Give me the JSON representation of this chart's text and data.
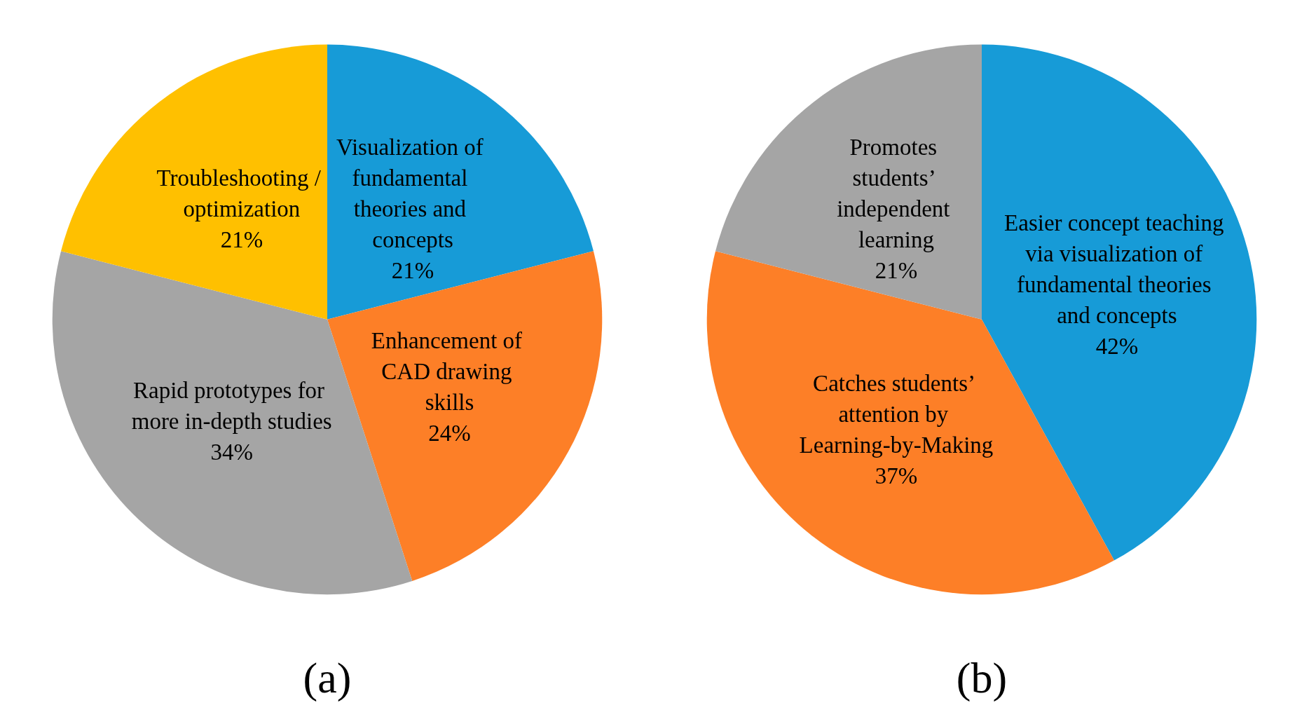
{
  "chart_data": [
    {
      "type": "pie",
      "title": "(a)",
      "categories": [
        "Visualization of fundamental theories and concepts",
        "Enhancement of CAD drawing skills",
        "Rapid prototypes for more in-depth studies",
        "Troubleshooting / optimization"
      ],
      "values": [
        21,
        24,
        34,
        21
      ],
      "value_labels": [
        "21%",
        "24%",
        "34%",
        "21%"
      ],
      "colors": [
        "#179bd7",
        "#fd7f27",
        "#a5a5a5",
        "#ffc000"
      ]
    },
    {
      "type": "pie",
      "title": "(b)",
      "categories": [
        "Easier concept teaching via visualization of fundamental theories and concepts",
        "Catches students’ attention by Learning-by-Making",
        "Promotes students’ independent learning"
      ],
      "values": [
        42,
        37,
        21
      ],
      "value_labels": [
        "42%",
        "37%",
        "21%"
      ],
      "colors": [
        "#179bd7",
        "#fd7f27",
        "#a5a5a5"
      ]
    }
  ]
}
